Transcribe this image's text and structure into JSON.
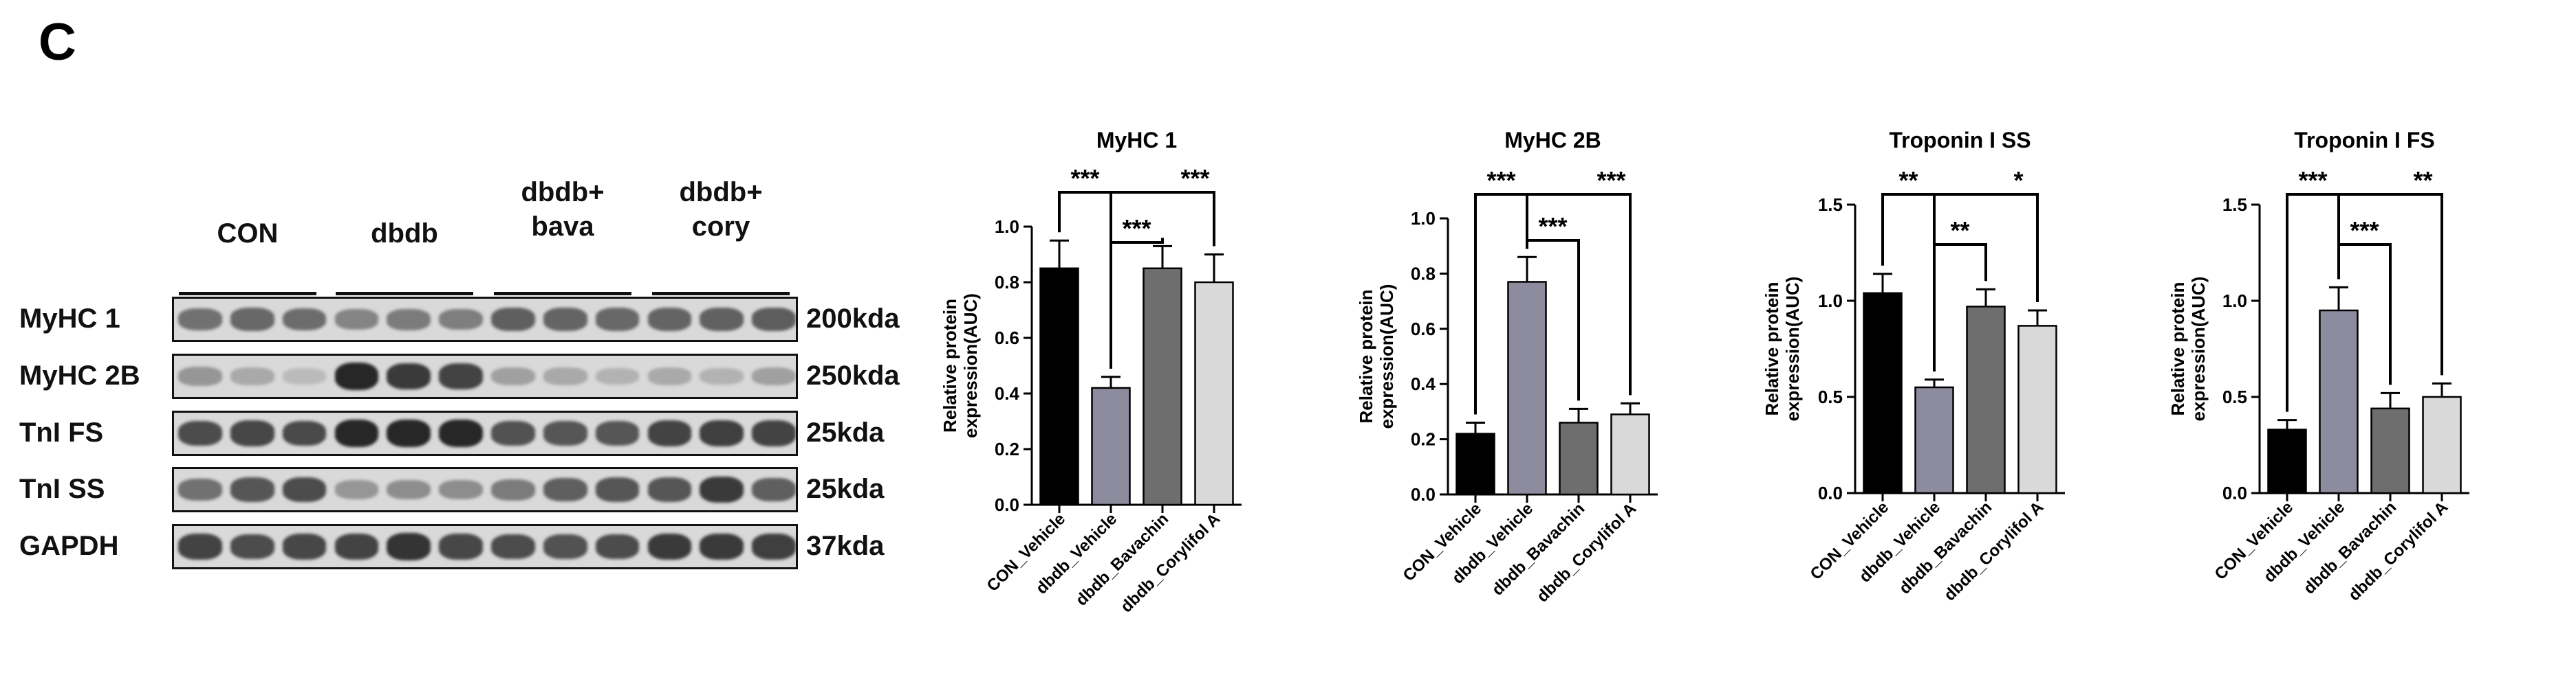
{
  "panel_label": "C",
  "western_blot": {
    "groups": [
      "CON",
      "dbdb",
      "dbdb+\nbava",
      "dbdb+\ncory"
    ],
    "rows": [
      {
        "label": "MyHC 1",
        "size": "200kda",
        "intensity": [
          0.55,
          0.6,
          0.58,
          0.45,
          0.5,
          0.48,
          0.65,
          0.62,
          0.6,
          0.62,
          0.64,
          0.66
        ]
      },
      {
        "label": "MyHC 2B",
        "size": "250kda",
        "intensity": [
          0.35,
          0.25,
          0.15,
          0.95,
          0.85,
          0.8,
          0.3,
          0.25,
          0.2,
          0.25,
          0.2,
          0.3
        ]
      },
      {
        "label": "TnI FS",
        "size": "25kda",
        "intensity": [
          0.75,
          0.78,
          0.76,
          0.95,
          0.95,
          0.95,
          0.72,
          0.7,
          0.7,
          0.8,
          0.82,
          0.8
        ]
      },
      {
        "label": "TnI SS",
        "size": "25kda",
        "intensity": [
          0.55,
          0.7,
          0.75,
          0.35,
          0.4,
          0.4,
          0.5,
          0.65,
          0.7,
          0.7,
          0.85,
          0.65
        ]
      },
      {
        "label": "GAPDH",
        "size": "37kda",
        "intensity": [
          0.8,
          0.75,
          0.78,
          0.8,
          0.88,
          0.78,
          0.75,
          0.72,
          0.75,
          0.85,
          0.85,
          0.82
        ]
      }
    ]
  },
  "chart_data": [
    {
      "type": "bar",
      "title": "MyHC 1",
      "ylabel": "Relative protein\nexpression(AUC)",
      "categories": [
        "CON_Vehicle",
        "dbdb_Vehicle",
        "dbdb_Bavachin",
        "dbdb_Corylifol A"
      ],
      "values": [
        0.85,
        0.42,
        0.85,
        0.8
      ],
      "errors": [
        0.1,
        0.04,
        0.08,
        0.1
      ],
      "ylim": [
        0,
        1.0
      ],
      "yticks": [
        "0.0",
        "0.2",
        "0.4",
        "0.6",
        "0.8",
        "1.0"
      ],
      "bar_colors": [
        "#000000",
        "#8c8c9e",
        "#6e6e6e",
        "#d9d9d9"
      ],
      "significance": [
        {
          "from": 0,
          "to": 1,
          "label": "***"
        },
        {
          "from": 1,
          "to": 2,
          "label": "***"
        },
        {
          "from": 1,
          "to": 3,
          "label": "***"
        }
      ]
    },
    {
      "type": "bar",
      "title": "MyHC 2B",
      "ylabel": "Relative protein\nexpression(AUC)",
      "categories": [
        "CON_Vehicle",
        "dbdb_Vehicle",
        "dbdb_Bavachin",
        "dbdb_Corylifol A"
      ],
      "values": [
        0.22,
        0.77,
        0.26,
        0.29
      ],
      "errors": [
        0.04,
        0.09,
        0.05,
        0.04
      ],
      "ylim": [
        0,
        1.0
      ],
      "yticks": [
        "0.0",
        "0.2",
        "0.4",
        "0.6",
        "0.8",
        "1.0"
      ],
      "bar_colors": [
        "#000000",
        "#8c8c9e",
        "#6e6e6e",
        "#d9d9d9"
      ],
      "significance": [
        {
          "from": 0,
          "to": 1,
          "label": "***"
        },
        {
          "from": 1,
          "to": 2,
          "label": "***"
        },
        {
          "from": 1,
          "to": 3,
          "label": "***"
        }
      ]
    },
    {
      "type": "bar",
      "title": "Troponin I SS",
      "ylabel": "Relative protein\nexpression(AUC)",
      "categories": [
        "CON_Vehicle",
        "dbdb_Vehicle",
        "dbdb_Bavachin",
        "dbdb_Corylifol A"
      ],
      "values": [
        1.04,
        0.55,
        0.97,
        0.87
      ],
      "errors": [
        0.1,
        0.04,
        0.09,
        0.08
      ],
      "ylim": [
        0,
        1.5
      ],
      "yticks": [
        "0.0",
        "0.5",
        "1.0",
        "1.5"
      ],
      "bar_colors": [
        "#000000",
        "#8c8c9e",
        "#6e6e6e",
        "#d9d9d9"
      ],
      "significance": [
        {
          "from": 0,
          "to": 1,
          "label": "**"
        },
        {
          "from": 1,
          "to": 2,
          "label": "**"
        },
        {
          "from": 1,
          "to": 3,
          "label": "*"
        }
      ]
    },
    {
      "type": "bar",
      "title": "Troponin I FS",
      "ylabel": "Relative protein\nexpression(AUC)",
      "categories": [
        "CON_Vehicle",
        "dbdb_Vehicle",
        "dbdb_Bavachin",
        "dbdb_Corylifol A"
      ],
      "values": [
        0.33,
        0.95,
        0.44,
        0.5
      ],
      "errors": [
        0.05,
        0.12,
        0.08,
        0.07
      ],
      "ylim": [
        0,
        1.5
      ],
      "yticks": [
        "0.0",
        "0.5",
        "1.0",
        "1.5"
      ],
      "bar_colors": [
        "#000000",
        "#8c8c9e",
        "#6e6e6e",
        "#d9d9d9"
      ],
      "significance": [
        {
          "from": 0,
          "to": 1,
          "label": "***"
        },
        {
          "from": 1,
          "to": 2,
          "label": "***"
        },
        {
          "from": 1,
          "to": 3,
          "label": "**"
        }
      ]
    }
  ]
}
